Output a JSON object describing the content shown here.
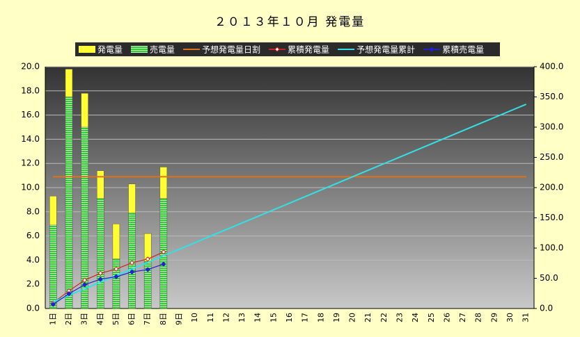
{
  "chart_data": {
    "type": "combo",
    "title": "２０１３年１０月 発電量",
    "categories": [
      "1日",
      "2日",
      "3日",
      "4日",
      "5日",
      "6日",
      "7日",
      "8日",
      "9日",
      "10",
      "11",
      "12",
      "13",
      "14",
      "15",
      "16",
      "17",
      "18",
      "19",
      "20",
      "21",
      "22",
      "23",
      "24",
      "25",
      "26",
      "27",
      "28",
      "29",
      "30",
      "31"
    ],
    "series": [
      {
        "name": "発電量",
        "type": "bar",
        "color": "#ffff33",
        "values": [
          9.3,
          19.8,
          17.8,
          11.4,
          7.0,
          10.3,
          6.2,
          11.7,
          null,
          null,
          null,
          null,
          null,
          null,
          null,
          null,
          null,
          null,
          null,
          null,
          null,
          null,
          null,
          null,
          null,
          null,
          null,
          null,
          null,
          null,
          null
        ]
      },
      {
        "name": "売電量",
        "type": "bar",
        "color": "#33cc33",
        "values": [
          6.9,
          17.5,
          15.0,
          9.1,
          4.1,
          7.9,
          3.9,
          9.1,
          null,
          null,
          null,
          null,
          null,
          null,
          null,
          null,
          null,
          null,
          null,
          null,
          null,
          null,
          null,
          null,
          null,
          null,
          null,
          null,
          null,
          null,
          null
        ]
      },
      {
        "name": "予想発電量日割",
        "type": "line",
        "color": "#e0701a",
        "values": [
          10.9,
          10.9,
          10.9,
          10.9,
          10.9,
          10.9,
          10.9,
          10.9,
          10.9,
          10.9,
          10.9,
          10.9,
          10.9,
          10.9,
          10.9,
          10.9,
          10.9,
          10.9,
          10.9,
          10.9,
          10.9,
          10.9,
          10.9,
          10.9,
          10.9,
          10.9,
          10.9,
          10.9,
          10.9,
          10.9,
          10.9
        ]
      },
      {
        "name": "累積発電量",
        "type": "line",
        "marker": true,
        "color": "#cc2222",
        "axis": "y2",
        "values": [
          9.3,
          29.1,
          46.9,
          58.3,
          65.3,
          75.6,
          81.8,
          93.5,
          null,
          null,
          null,
          null,
          null,
          null,
          null,
          null,
          null,
          null,
          null,
          null,
          null,
          null,
          null,
          null,
          null,
          null,
          null,
          null,
          null,
          null,
          null
        ]
      },
      {
        "name": "予想発電量累計",
        "type": "line",
        "color": "#33e0e8",
        "axis": "y2",
        "values": [
          10.9,
          21.8,
          32.7,
          43.6,
          54.5,
          65.4,
          76.3,
          87.2,
          98.1,
          109,
          119.9,
          130.8,
          141.7,
          152.6,
          163.5,
          174.4,
          185.3,
          196.2,
          207.1,
          218,
          228.9,
          239.8,
          250.7,
          261.6,
          272.5,
          283.4,
          294.3,
          305.2,
          316.1,
          327,
          337.9
        ]
      },
      {
        "name": "累積売電量",
        "type": "line",
        "marker": true,
        "color": "#2222cc",
        "axis": "y2",
        "values": [
          6.9,
          24.4,
          39.4,
          48.5,
          52.6,
          60.5,
          64.4,
          73.5,
          null,
          null,
          null,
          null,
          null,
          null,
          null,
          null,
          null,
          null,
          null,
          null,
          null,
          null,
          null,
          null,
          null,
          null,
          null,
          null,
          null,
          null,
          null
        ]
      }
    ],
    "ylim": [
      0,
      20
    ],
    "yticks": [
      {
        "value": 0,
        "label": "0.0"
      },
      {
        "value": 2,
        "label": "2.0"
      },
      {
        "value": 4,
        "label": "4.0"
      },
      {
        "value": 6,
        "label": "6.0"
      },
      {
        "value": 8,
        "label": "8.0"
      },
      {
        "value": 10,
        "label": "10.0"
      },
      {
        "value": 12,
        "label": "12.0"
      },
      {
        "value": 14,
        "label": "14.0"
      },
      {
        "value": 16,
        "label": "16.0"
      },
      {
        "value": 18,
        "label": "18.0"
      },
      {
        "value": 20,
        "label": "20.0"
      }
    ],
    "y2lim": [
      0,
      400
    ],
    "y2ticks": [
      {
        "value": 0,
        "label": "0.0"
      },
      {
        "value": 50,
        "label": "50.0"
      },
      {
        "value": 100,
        "label": "100.0"
      },
      {
        "value": 150,
        "label": "150.0"
      },
      {
        "value": 200,
        "label": "200.0"
      },
      {
        "value": 250,
        "label": "250.0"
      },
      {
        "value": 300,
        "label": "300.0"
      },
      {
        "value": 350,
        "label": "350.0"
      },
      {
        "value": 400,
        "label": "400.0"
      }
    ],
    "grid": true
  }
}
